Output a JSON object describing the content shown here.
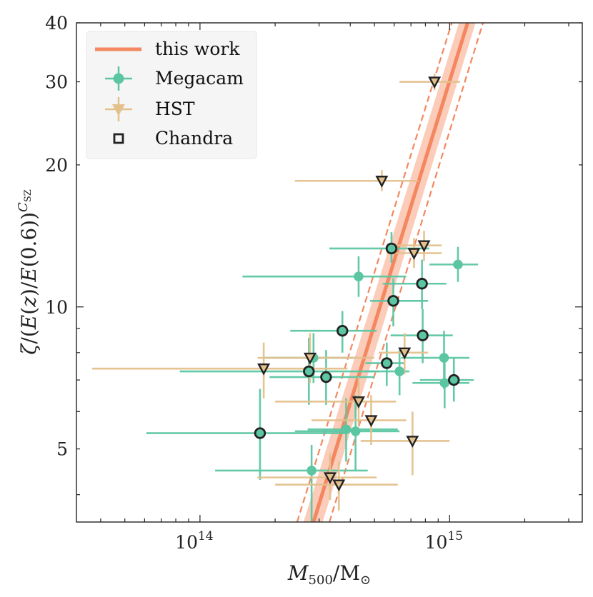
{
  "colors": {
    "fit": "#f4875f",
    "band": "#f9c3ad",
    "megacam": "#5cc6a2",
    "hst": "#e4c08c",
    "chandra_edge": "#222222"
  },
  "chart_data": {
    "type": "scatter",
    "x_scale": "log",
    "y_scale": "log",
    "xlim": [
      32000000000000.0,
      3400000000000000.0
    ],
    "ylim": [
      3.5,
      40
    ],
    "xlabel": "M500/M⊙",
    "ylabel": "ζ/(E(z)/E(0.6))^Csz",
    "x_ticks": [
      {
        "value": 100000000000000.0,
        "base": "10",
        "exp": "14"
      },
      {
        "value": 1000000000000000.0,
        "base": "10",
        "exp": "15"
      }
    ],
    "y_ticks": [
      {
        "value": 5,
        "label": "5"
      },
      {
        "value": 10,
        "label": "10"
      },
      {
        "value": 20,
        "label": "20"
      },
      {
        "value": 30,
        "label": "30"
      },
      {
        "value": 40,
        "label": "40"
      }
    ],
    "legend": {
      "placement": "top-left",
      "items": [
        {
          "key": "fit",
          "label": "this work"
        },
        {
          "key": "megacam",
          "label": "Megacam"
        },
        {
          "key": "hst",
          "label": "HST"
        },
        {
          "key": "chandra",
          "label": "Chandra"
        }
      ]
    },
    "fit": {
      "name": "this work",
      "center": [
        [
          285000000000000.0,
          3.5
        ],
        [
          1180000000000000.0,
          40
        ]
      ],
      "band_lower": [
        [
          310000000000000.0,
          3.5
        ],
        [
          1270000000000000.0,
          40
        ]
      ],
      "band_upper": [
        [
          260000000000000.0,
          3.5
        ],
        [
          1090000000000000.0,
          40
        ]
      ],
      "dashed_lower": [
        [
          330000000000000.0,
          3.5
        ],
        [
          1360000000000000.0,
          40
        ]
      ],
      "dashed_upper": [
        [
          245000000000000.0,
          3.5
        ],
        [
          1020000000000000.0,
          40
        ]
      ]
    },
    "series": [
      {
        "name": "Megacam",
        "marker": "circle",
        "points": [
          {
            "x": 174000000000000.0,
            "y": 5.4,
            "xlo": 61000000000000.0,
            "xhi": 385000000000000.0,
            "ylo": 4.3,
            "yhi": 6.7,
            "chandra": true
          },
          {
            "x": 273000000000000.0,
            "y": 7.3,
            "xlo": 83000000000000.0,
            "xhi": 520000000000000.0,
            "ylo": 6.2,
            "yhi": 8.6,
            "chandra": true
          },
          {
            "x": 285000000000000.0,
            "y": 7.8,
            "xlo": 180000000000000.0,
            "xhi": 420000000000000.0,
            "ylo": 6.9,
            "yhi": 8.8,
            "chandra": false
          },
          {
            "x": 280000000000000.0,
            "y": 4.5,
            "xlo": 115000000000000.0,
            "xhi": 470000000000000.0,
            "ylo": 3.5,
            "yhi": 5.1,
            "chandra": false
          },
          {
            "x": 320000000000000.0,
            "y": 7.1,
            "xlo": 190000000000000.0,
            "xhi": 500000000000000.0,
            "ylo": 6.2,
            "yhi": 8.1,
            "chandra": true
          },
          {
            "x": 372000000000000.0,
            "y": 8.9,
            "xlo": 230000000000000.0,
            "xhi": 510000000000000.0,
            "ylo": 8.0,
            "yhi": 9.8,
            "chandra": true
          },
          {
            "x": 385000000000000.0,
            "y": 5.5,
            "xlo": 270000000000000.0,
            "xhi": 620000000000000.0,
            "ylo": 4.7,
            "yhi": 6.4,
            "chandra": false
          },
          {
            "x": 420000000000000.0,
            "y": 5.45,
            "xlo": 240000000000000.0,
            "xhi": 630000000000000.0,
            "ylo": 4.5,
            "yhi": 6.5,
            "chandra": false
          },
          {
            "x": 432000000000000.0,
            "y": 11.6,
            "xlo": 148000000000000.0,
            "xhi": 670000000000000.0,
            "ylo": 10.5,
            "yhi": 12.8,
            "chandra": false
          },
          {
            "x": 560000000000000.0,
            "y": 7.6,
            "xlo": 460000000000000.0,
            "xhi": 660000000000000.0,
            "ylo": 6.8,
            "yhi": 8.4,
            "chandra": true
          },
          {
            "x": 585000000000000.0,
            "y": 13.3,
            "xlo": 330000000000000.0,
            "xhi": 830000000000000.0,
            "ylo": 12.4,
            "yhi": 14.4,
            "chandra": true
          },
          {
            "x": 595000000000000.0,
            "y": 10.3,
            "xlo": 480000000000000.0,
            "xhi": 820000000000000.0,
            "ylo": 9.1,
            "yhi": 11.5,
            "chandra": true
          },
          {
            "x": 630000000000000.0,
            "y": 7.3,
            "xlo": 460000000000000.0,
            "xhi": 690000000000000.0,
            "ylo": 6.5,
            "yhi": 8.1,
            "chandra": false
          },
          {
            "x": 775000000000000.0,
            "y": 11.2,
            "xlo": 540000000000000.0,
            "xhi": 970000000000000.0,
            "ylo": 9.9,
            "yhi": 12.6,
            "chandra": true
          },
          {
            "x": 780000000000000.0,
            "y": 8.7,
            "xlo": 580000000000000.0,
            "xhi": 1030000000000000.0,
            "ylo": 7.6,
            "yhi": 9.9,
            "chandra": true
          },
          {
            "x": 950000000000000.0,
            "y": 7.8,
            "xlo": 640000000000000.0,
            "xhi": 1200000000000000.0,
            "ylo": 6.7,
            "yhi": 8.9,
            "chandra": false
          },
          {
            "x": 955000000000000.0,
            "y": 6.9,
            "xlo": 710000000000000.0,
            "xhi": 1200000000000000.0,
            "ylo": 6.1,
            "yhi": 7.7,
            "chandra": false
          },
          {
            "x": 1040000000000000.0,
            "y": 7.0,
            "xlo": 760000000000000.0,
            "xhi": 1250000000000000.0,
            "ylo": 6.3,
            "yhi": 7.8,
            "chandra": true
          },
          {
            "x": 1080000000000000.0,
            "y": 12.3,
            "xlo": 830000000000000.0,
            "xhi": 1300000000000000.0,
            "ylo": 11.3,
            "yhi": 13.4,
            "chandra": false
          }
        ]
      },
      {
        "name": "HST",
        "marker": "triangle-down",
        "points": [
          {
            "x": 180000000000000.0,
            "y": 7.4,
            "xlo": 37000000000000.0,
            "xhi": 390000000000000.0,
            "ylo": 6.4,
            "yhi": 8.4,
            "chandra": false
          },
          {
            "x": 276000000000000.0,
            "y": 7.8,
            "xlo": 170000000000000.0,
            "xhi": 500000000000000.0,
            "ylo": 6.9,
            "yhi": 8.8,
            "chandra": false
          },
          {
            "x": 332000000000000.0,
            "y": 4.35,
            "xlo": 170000000000000.0,
            "xhi": 510000000000000.0,
            "ylo": 3.9,
            "yhi": 4.9,
            "chandra": false
          },
          {
            "x": 360000000000000.0,
            "y": 4.2,
            "xlo": 200000000000000.0,
            "xhi": 620000000000000.0,
            "ylo": 3.7,
            "yhi": 4.7,
            "chandra": false
          },
          {
            "x": 432000000000000.0,
            "y": 6.3,
            "xlo": 200000000000000.0,
            "xhi": 610000000000000.0,
            "ylo": 5.6,
            "yhi": 7.1,
            "chandra": false
          },
          {
            "x": 485000000000000.0,
            "y": 5.75,
            "xlo": 280000000000000.0,
            "xhi": 670000000000000.0,
            "ylo": 5.1,
            "yhi": 6.5,
            "chandra": false
          },
          {
            "x": 535000000000000.0,
            "y": 18.5,
            "xlo": 240000000000000.0,
            "xhi": 750000000000000.0,
            "ylo": 17.6,
            "yhi": 19.5,
            "chandra": false
          },
          {
            "x": 660000000000000.0,
            "y": 8.0,
            "xlo": 520000000000000.0,
            "xhi": 820000000000000.0,
            "ylo": 7.2,
            "yhi": 8.8,
            "chandra": false
          },
          {
            "x": 710000000000000.0,
            "y": 5.2,
            "xlo": 440000000000000.0,
            "xhi": 1000000000000000.0,
            "ylo": 4.4,
            "yhi": 6.0,
            "chandra": false
          },
          {
            "x": 720000000000000.0,
            "y": 13.0,
            "xlo": 560000000000000.0,
            "xhi": 930000000000000.0,
            "ylo": 12.1,
            "yhi": 14.0,
            "chandra": false
          },
          {
            "x": 790000000000000.0,
            "y": 13.5,
            "xlo": 590000000000000.0,
            "xhi": 930000000000000.0,
            "ylo": 12.5,
            "yhi": 14.5,
            "chandra": false
          },
          {
            "x": 870000000000000.0,
            "y": 30.0,
            "xlo": 630000000000000.0,
            "xhi": 1100000000000000.0,
            "ylo": 28.8,
            "yhi": 31.2,
            "chandra": false
          }
        ]
      }
    ]
  }
}
